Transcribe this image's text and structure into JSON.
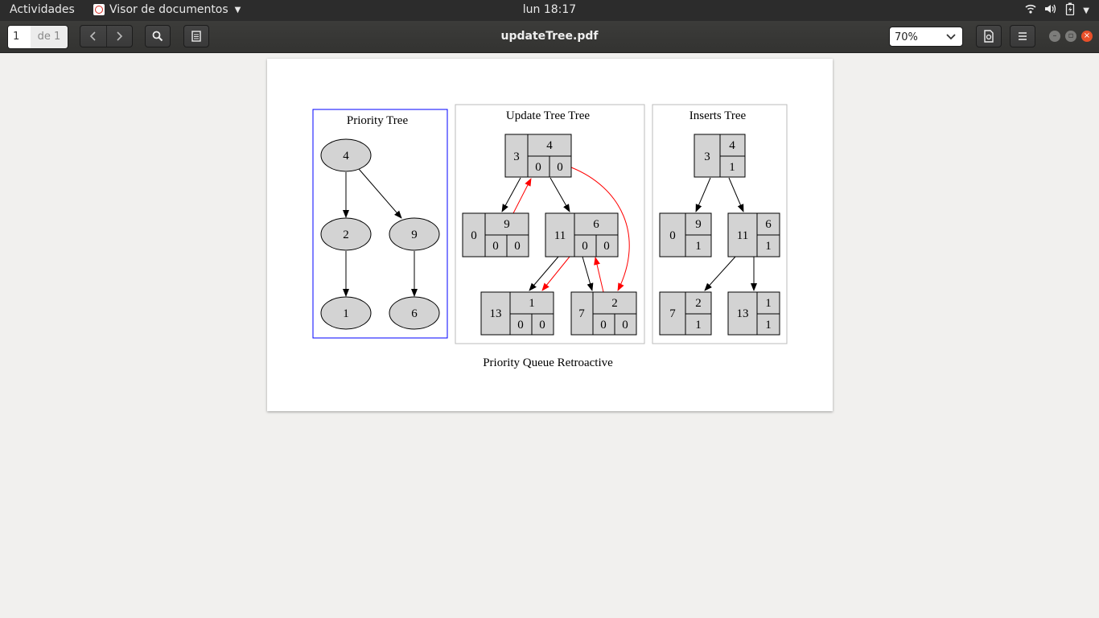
{
  "topbar": {
    "activities": "Actividades",
    "app_name": "Visor de documentos",
    "clock": "lun 18:17"
  },
  "header": {
    "page_current": "1",
    "page_total": "de 1",
    "doc_title": "updateTree.pdf",
    "zoom": "70%"
  },
  "document": {
    "caption": "Priority Queue Retroactive",
    "priority_tree": {
      "title": "Priority Tree",
      "nodes": [
        "4",
        "2",
        "9",
        "1",
        "6"
      ]
    },
    "update_tree": {
      "title": "Update Tree Tree",
      "root": {
        "key": "3",
        "value": "4",
        "a": "0",
        "b": "0"
      },
      "left": {
        "key": "0",
        "value": "9",
        "a": "0",
        "b": "0"
      },
      "right": {
        "key": "11",
        "value": "6",
        "a": "0",
        "b": "0"
      },
      "rl": {
        "key": "13",
        "value": "1",
        "a": "0",
        "b": "0"
      },
      "rr": {
        "key": "7",
        "value": "2",
        "a": "0",
        "b": "0"
      }
    },
    "inserts_tree": {
      "title": "Inserts Tree",
      "root": {
        "key": "3",
        "value": "4",
        "c": "1"
      },
      "left": {
        "key": "0",
        "value": "9",
        "c": "1"
      },
      "right": {
        "key": "11",
        "value": "6",
        "c": "1"
      },
      "rl": {
        "key": "7",
        "value": "2",
        "c": "1"
      },
      "rr": {
        "key": "13",
        "value": "1",
        "c": "1"
      }
    }
  },
  "colors": {
    "node_fill": "#d3d3d3",
    "highlight_edge": "#ff0000",
    "cluster_border": "#0000ff"
  }
}
